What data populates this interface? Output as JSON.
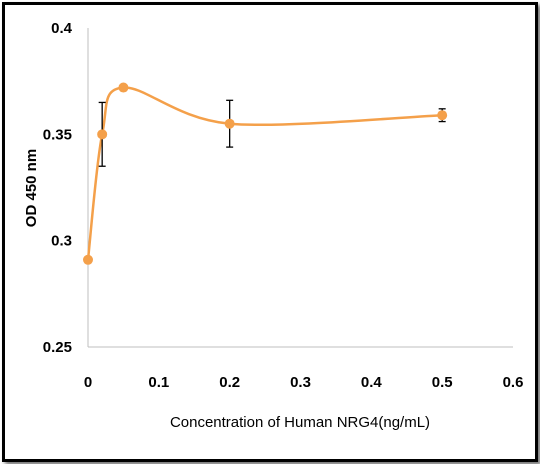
{
  "chart_data": {
    "type": "line",
    "title": "",
    "xlabel": "Concentration of Human NRG4(ng/mL)",
    "ylabel": "OD 450 nm",
    "xlim": [
      0,
      0.6
    ],
    "ylim": [
      0.25,
      0.4
    ],
    "xticks": [
      "0",
      "0.1",
      "0.2",
      "0.3",
      "0.4",
      "0.5",
      "0.6"
    ],
    "yticks": [
      "0.25",
      "0.3",
      "0.35",
      "0.4"
    ],
    "xtick_values": [
      0,
      0.1,
      0.2,
      0.3,
      0.4,
      0.5,
      0.6
    ],
    "ytick_values": [
      0.25,
      0.3,
      0.35,
      0.4
    ],
    "grid": false,
    "smooth": true,
    "series": [
      {
        "x": [
          0,
          0.02,
          0.05,
          0.2,
          0.5
        ],
        "y": [
          0.291,
          0.35,
          0.372,
          0.355,
          0.359
        ],
        "error": [
          0,
          0.015,
          0,
          0.011,
          0.003
        ],
        "color": "#F4A04A"
      }
    ]
  }
}
